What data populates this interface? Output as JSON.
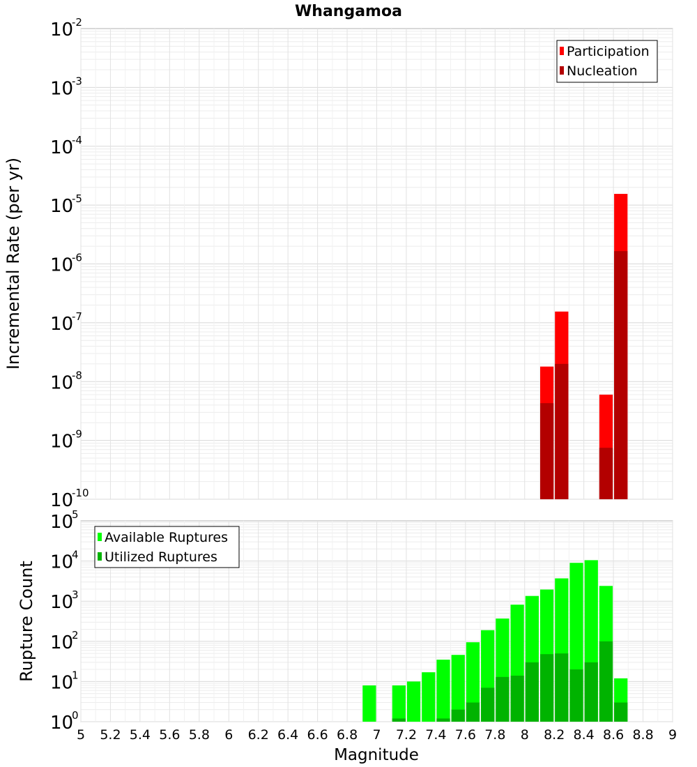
{
  "title": "Whangamoa",
  "xlabel": "Magnitude",
  "x_ticks": [
    "5",
    "5.2",
    "5.4",
    "5.6",
    "5.8",
    "6",
    "6.2",
    "6.4",
    "6.6",
    "6.8",
    "7",
    "7.2",
    "7.4",
    "7.6",
    "7.8",
    "8",
    "8.2",
    "8.4",
    "8.6",
    "8.8",
    "9"
  ],
  "colors": {
    "participation": "#ff0000",
    "nucleation": "#b30000",
    "available": "#00ff00",
    "utilized": "#00b300"
  },
  "chart_data": [
    {
      "type": "bar",
      "ylabel": "Incremental Rate (per yr)",
      "y_scale": "log",
      "ylim": [
        1e-10,
        0.01
      ],
      "xlim": [
        5,
        9
      ],
      "bin_width": 0.1,
      "y_tick_exponents": [
        "-10",
        "-9",
        "-8",
        "-7",
        "-6",
        "-5",
        "-4",
        "-3",
        "-2"
      ],
      "legend": {
        "position": "top-right",
        "entries": [
          "Participation",
          "Nucleation"
        ]
      },
      "series": [
        {
          "name": "Participation",
          "x": [
            8.15,
            8.25,
            8.55,
            8.65
          ],
          "values": [
            1.8e-08,
            1.55e-07,
            6e-09,
            1.55e-05
          ]
        },
        {
          "name": "Nucleation",
          "x": [
            8.15,
            8.25,
            8.55,
            8.65
          ],
          "values": [
            4.3e-09,
            2e-08,
            7.5e-10,
            1.65e-06
          ]
        }
      ],
      "grid": true
    },
    {
      "type": "bar",
      "ylabel": "Rupture Count",
      "y_scale": "log",
      "ylim": [
        1,
        100000.0
      ],
      "xlim": [
        5,
        9
      ],
      "bin_width": 0.1,
      "y_tick_exponents": [
        "0",
        "1",
        "2",
        "3",
        "4",
        "5"
      ],
      "legend": {
        "position": "top-left",
        "entries": [
          "Available Ruptures",
          "Utilized Ruptures"
        ]
      },
      "series": [
        {
          "name": "Available Ruptures",
          "x": [
            6.95,
            7.15,
            7.25,
            7.35,
            7.45,
            7.55,
            7.65,
            7.75,
            7.85,
            7.95,
            8.05,
            8.15,
            8.25,
            8.35,
            8.45,
            8.55,
            8.65
          ],
          "values": [
            8,
            8,
            10,
            17,
            35,
            46,
            95,
            190,
            370,
            820,
            1350,
            1950,
            3700,
            9000,
            10500,
            2400,
            12
          ]
        },
        {
          "name": "Utilized Ruptures",
          "x": [
            7.15,
            7.45,
            7.55,
            7.65,
            7.75,
            7.85,
            7.95,
            8.05,
            8.15,
            8.25,
            8.35,
            8.45,
            8.55,
            8.65
          ],
          "values": [
            1.2,
            1.2,
            2,
            3,
            7,
            13,
            14,
            30,
            48,
            50,
            20,
            30,
            100,
            3
          ]
        }
      ],
      "grid": true
    }
  ]
}
